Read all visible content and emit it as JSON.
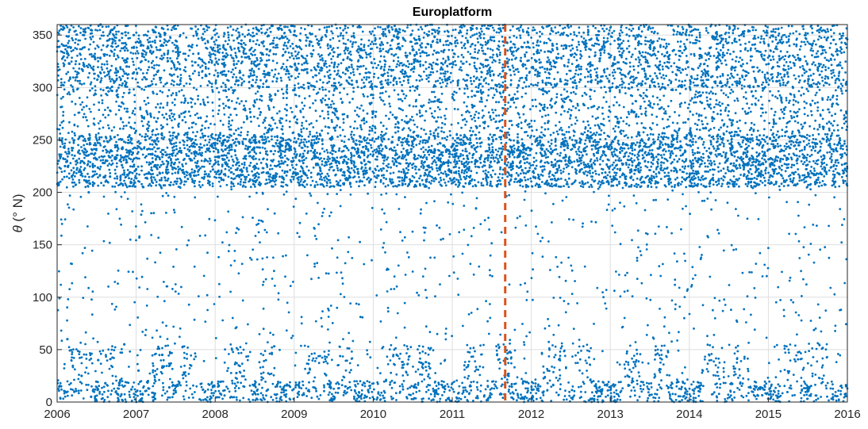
{
  "chart_data": {
    "type": "scatter",
    "title": "Europlatform",
    "xlabel": "",
    "ylabel_symbol": "θ",
    "ylabel_unit": " (° N)",
    "xlim": [
      2006,
      2016
    ],
    "ylim": [
      0,
      360
    ],
    "xticks": [
      2006,
      2007,
      2008,
      2009,
      2010,
      2011,
      2012,
      2013,
      2014,
      2015,
      2016
    ],
    "xtick_labels": [
      "2006",
      "2007",
      "2008",
      "2009",
      "2010",
      "2011",
      "2012",
      "2013",
      "2014",
      "2015",
      "2016"
    ],
    "yticks": [
      0,
      50,
      100,
      150,
      200,
      250,
      300,
      350
    ],
    "ytick_labels": [
      "0",
      "50",
      "100",
      "150",
      "200",
      "250",
      "300",
      "350"
    ],
    "grid": true,
    "marker_color": "#0072BD",
    "vline": {
      "x": 2011.67,
      "color": "#D95319",
      "style": "dashed"
    },
    "series": [
      {
        "values_description": "dense time series of wind/wave direction; concentrated near 200–250 and 300–360, with bursts near 0–50",
        "x": [
          2006.02,
          2006.05,
          2006.08,
          2006.1,
          2006.13,
          2006.16,
          2006.19,
          2006.22,
          2006.25,
          2006.28,
          2006.31,
          2006.34,
          2006.37,
          2006.4,
          2006.43,
          2006.46,
          2006.49,
          2006.52,
          2006.55,
          2006.58,
          2006.61,
          2006.64,
          2006.67,
          2006.7,
          2006.73,
          2006.76,
          2006.79,
          2006.82,
          2006.85,
          2006.88,
          2006.91,
          2006.94,
          2006.97,
          2007.0,
          2007.03,
          2007.06,
          2007.09,
          2007.12,
          2007.15,
          2007.18,
          2007.21,
          2007.24,
          2007.27,
          2007.3,
          2007.33,
          2007.36,
          2007.39,
          2007.42,
          2007.45,
          2007.48
        ],
        "y": [
          230,
          15,
          340,
          225,
          60,
          355,
          240,
          10,
          310,
          220,
          25,
          350,
          235,
          200,
          5,
          330,
          245,
          40,
          360,
          228,
          18,
          300,
          215,
          355,
          232,
          8,
          345,
          226,
          55,
          320,
          238,
          12,
          350,
          222,
          30,
          340,
          205,
          250,
          20,
          335,
          229,
          3,
          315,
          218,
          45,
          352,
          236,
          14,
          325,
          227
        ]
      }
    ]
  }
}
